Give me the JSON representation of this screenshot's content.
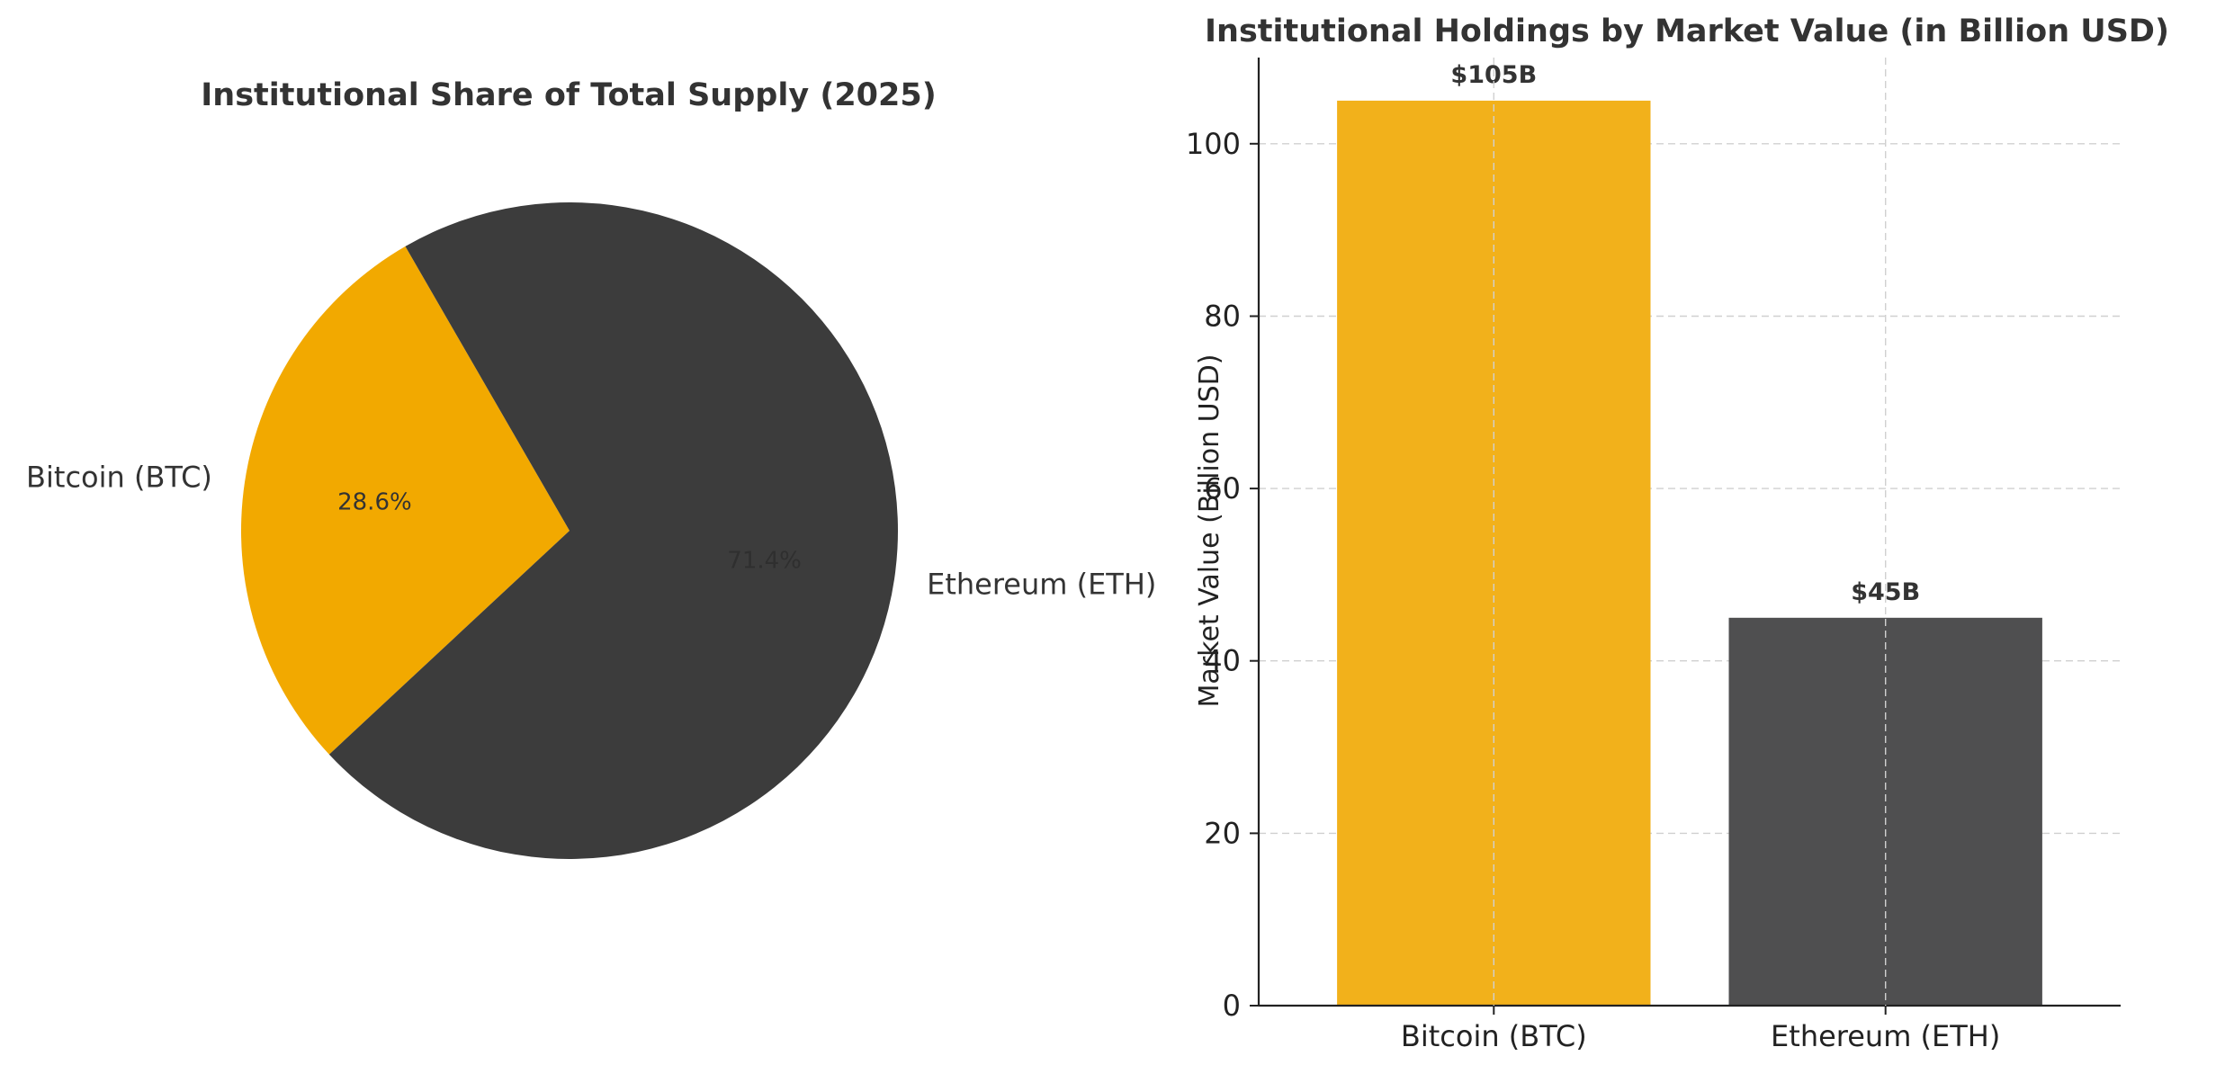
{
  "chart_data": [
    {
      "type": "pie",
      "title": "Institutional Share of Total Supply (2025)",
      "labels": [
        "Bitcoin (BTC)",
        "Ethereum (ETH)"
      ],
      "values": [
        28.6,
        71.4
      ],
      "value_labels": [
        "28.6%",
        "71.4%"
      ],
      "colors": [
        "#f2a900",
        "#3c3c3c"
      ],
      "value_label_colors": [
        "#333333",
        "#2f2f2f"
      ],
      "legend": "none"
    },
    {
      "type": "bar",
      "title": "Institutional Holdings by Market Value (in Billion USD)",
      "categories": [
        "Bitcoin (BTC)",
        "Ethereum (ETH)"
      ],
      "values": [
        105,
        45
      ],
      "data_labels": [
        "$105B",
        "$45B"
      ],
      "colors": [
        "#f2b11b",
        "#4f4f50"
      ],
      "xlabel": "",
      "ylabel": "Market Value (Billion USD)",
      "ylim": [
        0,
        110
      ],
      "yticks": [
        0,
        20,
        40,
        60,
        80,
        100
      ],
      "grid": true,
      "legend": "none"
    }
  ]
}
